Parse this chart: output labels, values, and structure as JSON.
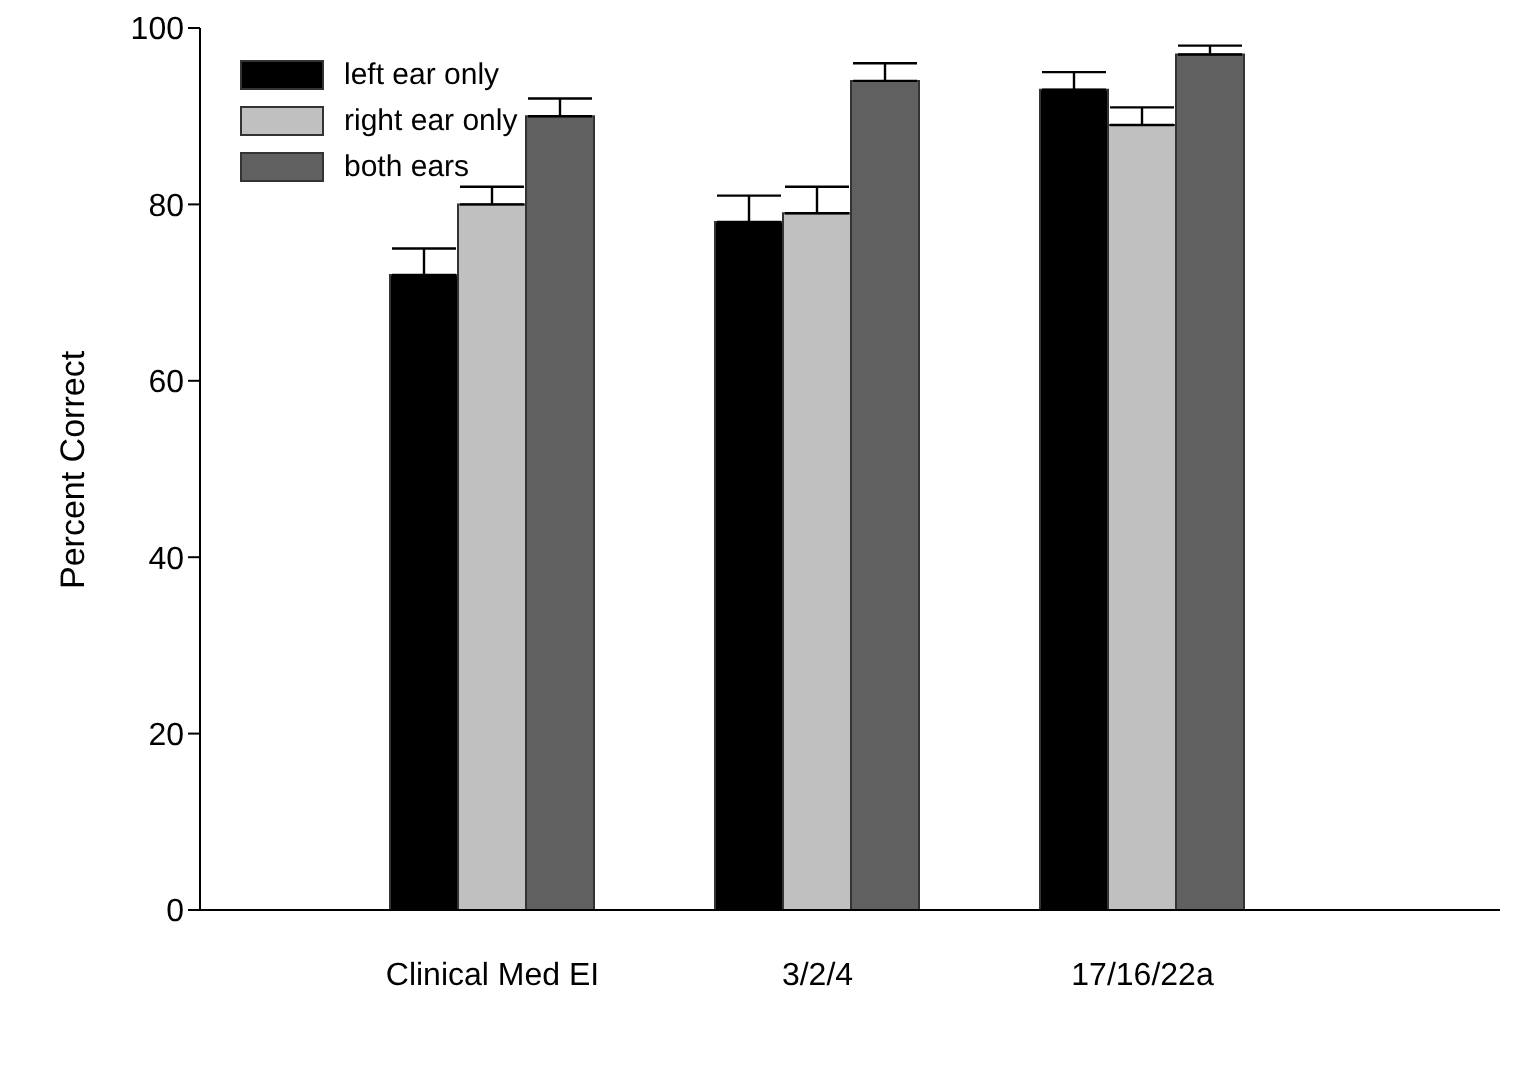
{
  "chart_data": {
    "type": "bar",
    "ylabel": "Percent Correct",
    "categories": [
      "Clinical Med EI",
      "3/2/4",
      "17/16/22a"
    ],
    "series": [
      {
        "name": "left ear only",
        "color": "#000000",
        "values": [
          72,
          78,
          93
        ],
        "errors": [
          [
            72,
            75
          ],
          [
            78,
            81
          ],
          [
            93,
            95
          ]
        ]
      },
      {
        "name": "right ear only",
        "color": "#c0c0c0",
        "values": [
          80,
          79,
          89
        ],
        "errors": [
          [
            80,
            82
          ],
          [
            79,
            82
          ],
          [
            89,
            91
          ]
        ]
      },
      {
        "name": "both ears",
        "color": "#606060",
        "values": [
          90,
          94,
          97
        ],
        "errors": [
          [
            90,
            92
          ],
          [
            94,
            96
          ],
          [
            97,
            98
          ]
        ]
      }
    ],
    "ylim": [
      0,
      100
    ],
    "yticks": [
      0,
      20,
      40,
      60,
      80,
      100
    ],
    "grid": false,
    "legend": "top left"
  }
}
